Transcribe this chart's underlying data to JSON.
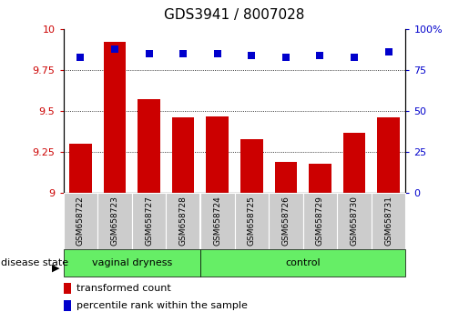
{
  "title": "GDS3941 / 8007028",
  "samples": [
    "GSM658722",
    "GSM658723",
    "GSM658727",
    "GSM658728",
    "GSM658724",
    "GSM658725",
    "GSM658726",
    "GSM658729",
    "GSM658730",
    "GSM658731"
  ],
  "bar_values": [
    9.3,
    9.92,
    9.57,
    9.46,
    9.47,
    9.33,
    9.19,
    9.18,
    9.37,
    9.46
  ],
  "percentile_values": [
    83,
    88,
    85,
    85,
    85,
    84,
    83,
    84,
    83,
    86
  ],
  "bar_color": "#cc0000",
  "dot_color": "#0000cc",
  "ylim_left": [
    9.0,
    10.0
  ],
  "ylim_right": [
    0,
    100
  ],
  "yticks_left": [
    9.0,
    9.25,
    9.5,
    9.75,
    10.0
  ],
  "ytick_labels_left": [
    "9",
    "9.25",
    "9.5",
    "9.75",
    "10"
  ],
  "yticks_right": [
    0,
    25,
    50,
    75,
    100
  ],
  "ytick_labels_right": [
    "0",
    "25",
    "50",
    "75",
    "100%"
  ],
  "group1_label": "vaginal dryness",
  "group2_label": "control",
  "group1_count": 4,
  "group2_count": 6,
  "group_label_prefix": "disease state",
  "legend_bar_label": "transformed count",
  "legend_dot_label": "percentile rank within the sample",
  "group_bg_color": "#66ee66",
  "sample_bg_color": "#cccccc",
  "bar_width": 0.65,
  "dot_size": 40,
  "title_fontsize": 11,
  "tick_fontsize": 8,
  "label_fontsize": 8,
  "legend_fontsize": 8
}
